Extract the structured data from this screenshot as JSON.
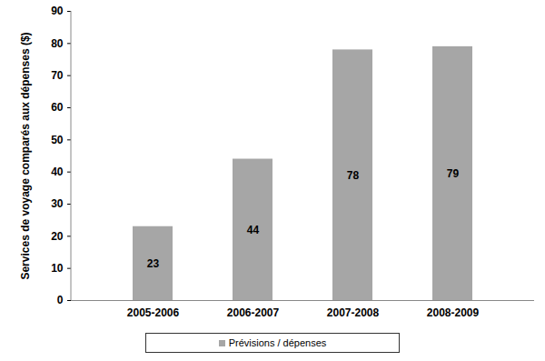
{
  "chart_data": {
    "type": "bar",
    "y_label": "Services de voyage comparés aux dépenses ($)",
    "categories": [
      "2005-2006",
      "2006-2007",
      "2007-2008",
      "2008-2009"
    ],
    "series": [
      {
        "name": "Prévisions / dépenses",
        "color": "#a6a6a6",
        "values": [
          23,
          44,
          78,
          79
        ]
      }
    ],
    "ylim": [
      0,
      90
    ],
    "yticks": [
      0,
      10,
      20,
      30,
      40,
      50,
      60,
      70,
      80,
      90
    ],
    "grid": false,
    "data_labels": true,
    "legend": "bottom"
  }
}
